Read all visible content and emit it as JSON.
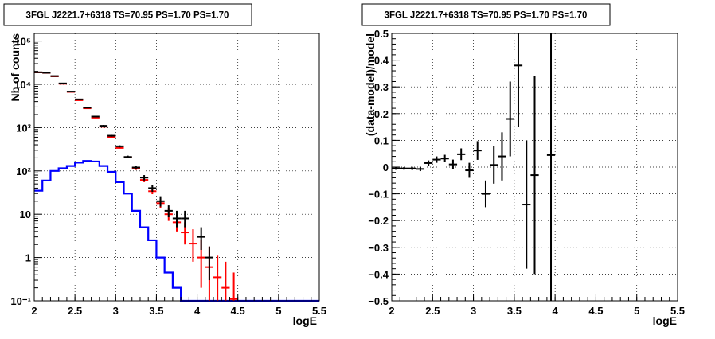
{
  "chart_data": [
    {
      "type": "histogram",
      "title": "3FGL J2221.7+6318 TS=70.95 PS=1.70 PS=1.70",
      "xlabel": "logE",
      "ylabel": "Nb of counts",
      "xlim": [
        2,
        5.5
      ],
      "ylim": [
        0.1,
        150000
      ],
      "yscale": "log",
      "grid": true,
      "xticks": [
        "2",
        "2.5",
        "3",
        "3.5",
        "4",
        "4.5",
        "5",
        "5.5"
      ],
      "yticks": [
        {
          "value": 0.1,
          "label": "10⁻¹"
        },
        {
          "value": 1,
          "label": "1"
        },
        {
          "value": 10,
          "label": "10"
        },
        {
          "value": 100,
          "label": "10²"
        },
        {
          "value": 1000,
          "label": "10³"
        },
        {
          "value": 10000,
          "label": "10⁴"
        },
        {
          "value": 100000,
          "label": "10⁵"
        }
      ],
      "bin_edges": [
        2.0,
        2.1,
        2.2,
        2.3,
        2.4,
        2.5,
        2.6,
        2.7,
        2.8,
        2.9,
        3.0,
        3.1,
        3.2,
        3.3,
        3.4,
        3.5,
        3.6,
        3.7,
        3.8,
        3.9,
        4.0,
        4.1,
        4.2,
        4.3,
        4.4,
        4.5,
        4.6,
        4.7,
        4.8,
        4.9,
        5.0,
        5.1,
        5.2,
        5.3,
        5.4,
        5.5
      ],
      "series": [
        {
          "kind": "data-points",
          "color": "#000000",
          "x": [
            2.05,
            2.15,
            2.25,
            2.35,
            2.45,
            2.55,
            2.65,
            2.75,
            2.85,
            2.95,
            3.05,
            3.15,
            3.25,
            3.35,
            3.45,
            3.55,
            3.65,
            3.75,
            3.85,
            4.05,
            4.15
          ],
          "y": [
            19000,
            18500,
            15500,
            10500,
            6800,
            4500,
            2900,
            1800,
            1100,
            650,
            370,
            210,
            120,
            70,
            40,
            20,
            12,
            8,
            8,
            3,
            1
          ],
          "ylow": [
            18800,
            18300,
            15300,
            10400,
            6700,
            4400,
            2850,
            1750,
            1050,
            620,
            350,
            195,
            110,
            60,
            33,
            15,
            8.5,
            5,
            5,
            1.5,
            0.3
          ],
          "yhigh": [
            19200,
            18700,
            15700,
            10600,
            6900,
            4600,
            2950,
            1850,
            1150,
            680,
            390,
            225,
            130,
            80,
            48,
            26,
            16,
            12,
            12,
            5,
            1.8
          ]
        },
        {
          "kind": "model",
          "color": "#ff0000",
          "x": [
            2.05,
            2.15,
            2.25,
            2.35,
            2.45,
            2.55,
            2.65,
            2.75,
            2.85,
            2.95,
            3.05,
            3.15,
            3.25,
            3.35,
            3.45,
            3.55,
            3.65,
            3.75,
            3.85,
            3.95,
            4.05,
            4.15,
            4.25,
            4.35,
            4.45
          ],
          "y": [
            18900,
            18400,
            15300,
            10300,
            6700,
            4300,
            2800,
            1700,
            1050,
            600,
            340,
            205,
            115,
            62,
            34,
            18,
            10,
            6.5,
            3.8,
            2.1,
            1.0,
            0.6,
            0.35,
            0.2,
            0.11
          ],
          "ylow": [
            18700,
            18200,
            15100,
            10200,
            6600,
            4200,
            2750,
            1650,
            1000,
            580,
            330,
            195,
            105,
            55,
            29,
            14,
            7,
            4,
            2,
            0.8,
            0.2,
            0.1,
            0.1,
            0.1,
            0.1
          ],
          "yhigh": [
            19100,
            18600,
            15500,
            10400,
            6800,
            4400,
            2850,
            1750,
            1100,
            620,
            350,
            215,
            125,
            70,
            40,
            23,
            14,
            9.5,
            6.5,
            4.5,
            2.5,
            1.8,
            1.1,
            0.8,
            0.45
          ]
        },
        {
          "kind": "component",
          "color": "#0000ff",
          "values": [
            35,
            60,
            100,
            115,
            130,
            155,
            170,
            165,
            130,
            95,
            55,
            30,
            12,
            5,
            2.5,
            1.0,
            0.45,
            0.2,
            0.1,
            0.1,
            0.1,
            0.1,
            0.1,
            0.1,
            0.1,
            0.1,
            0.1,
            0.1,
            0.1,
            0.1,
            0.1,
            0.1,
            0.1,
            0.1,
            0.1
          ]
        }
      ]
    },
    {
      "type": "scatter",
      "title": "3FGL J2221.7+6318 TS=70.95 PS=1.70 PS=1.70",
      "xlabel": "logE",
      "ylabel": "(data-model)/model",
      "xlim": [
        2,
        5.5
      ],
      "ylim": [
        -0.5,
        0.5
      ],
      "grid": true,
      "xticks": [
        "2",
        "2.5",
        "3",
        "3.5",
        "4",
        "4.5",
        "5",
        "5.5"
      ],
      "yticks": [
        "−0.5",
        "−0.4",
        "−0.3",
        "−0.2",
        "−0.1",
        "0",
        "0.1",
        "0.2",
        "0.3",
        "0.4",
        "0.5"
      ],
      "series": [
        {
          "color": "#000000",
          "x": [
            2.05,
            2.15,
            2.25,
            2.35,
            2.45,
            2.55,
            2.65,
            2.75,
            2.85,
            2.95,
            3.05,
            3.15,
            3.25,
            3.35,
            3.45,
            3.55,
            3.65,
            3.75,
            3.95
          ],
          "y": [
            -0.005,
            -0.005,
            -0.005,
            -0.007,
            0.015,
            0.028,
            0.032,
            0.01,
            0.048,
            -0.012,
            0.062,
            -0.1,
            0.008,
            0.04,
            0.18,
            0.38,
            -0.14,
            -0.03,
            0.045
          ],
          "err": [
            0.005,
            0.005,
            0.006,
            0.008,
            0.01,
            0.012,
            0.014,
            0.018,
            0.022,
            0.028,
            0.035,
            0.05,
            0.07,
            0.09,
            0.14,
            0.23,
            0.24,
            0.37,
            0.56
          ]
        }
      ]
    }
  ]
}
